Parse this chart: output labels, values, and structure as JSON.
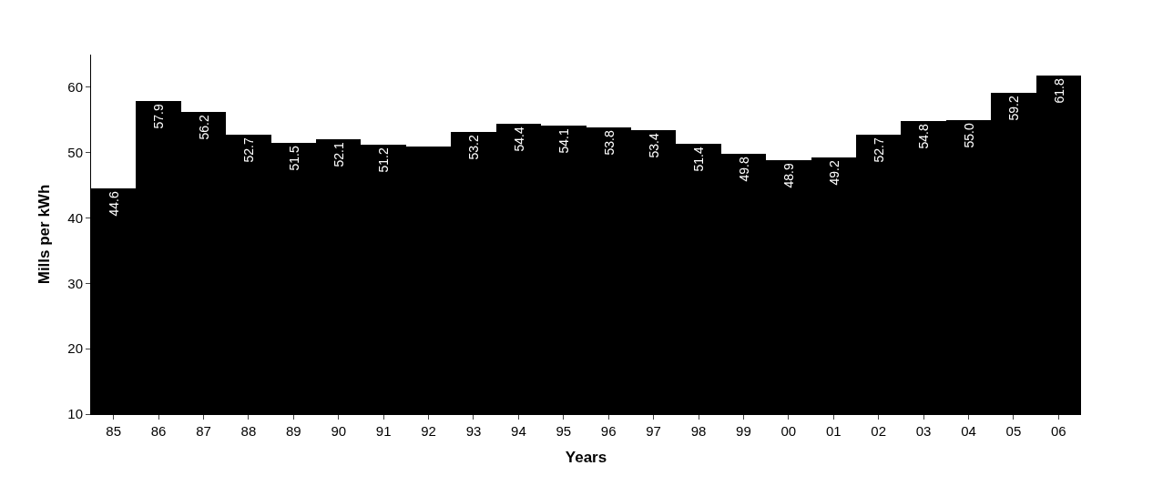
{
  "chart_data": {
    "type": "bar",
    "xlabel": "Years",
    "ylabel": "Mills per kWh",
    "categories": [
      "85",
      "86",
      "87",
      "88",
      "89",
      "90",
      "91",
      "92",
      "93",
      "94",
      "95",
      "96",
      "97",
      "98",
      "99",
      "00",
      "01",
      "02",
      "03",
      "04",
      "05",
      "06"
    ],
    "values": [
      44.6,
      57.9,
      56.2,
      52.7,
      51.5,
      52.1,
      51.2,
      51.0,
      53.2,
      54.4,
      54.1,
      53.8,
      53.4,
      51.4,
      49.8,
      48.9,
      49.2,
      52.7,
      54.8,
      55.0,
      59.2,
      61.8
    ],
    "value_labels": [
      "44.6",
      "57.9",
      "56.2",
      "52.7",
      "51.5",
      "52.1",
      "51.2",
      null,
      "53.2",
      "54.4",
      "54.1",
      "53.8",
      "53.4",
      "51.4",
      "49.8",
      "48.9",
      "49.2",
      "52.7",
      "54.8",
      "55.0",
      "59.2",
      "61.8"
    ],
    "color": "#000000",
    "ylim": [
      10,
      65
    ],
    "yticks": [
      10,
      20,
      30,
      40,
      50,
      60
    ],
    "legend": false
  }
}
